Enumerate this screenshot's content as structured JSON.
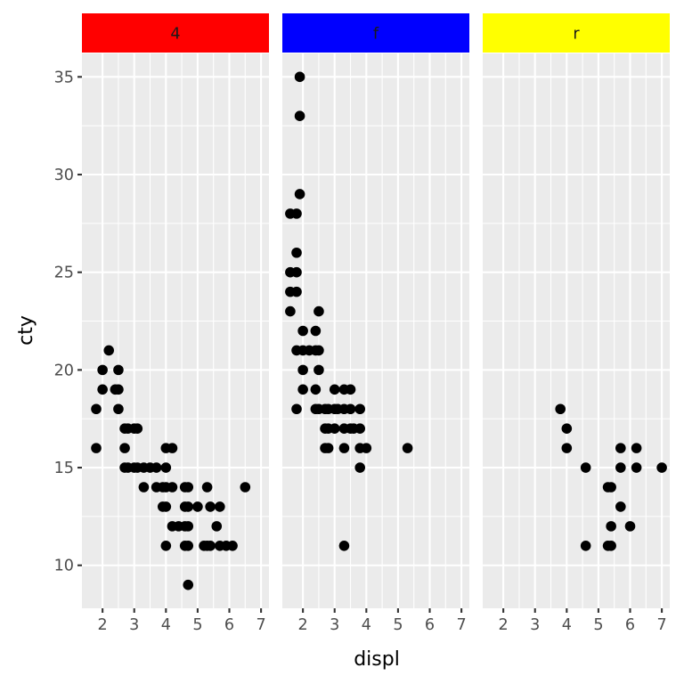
{
  "chart_data": {
    "type": "scatter",
    "xlabel": "displ",
    "ylabel": "cty",
    "xlim": [
      1.35,
      7.25
    ],
    "ylim": [
      7.8,
      36.2
    ],
    "x_ticks": [
      2,
      3,
      4,
      5,
      6,
      7
    ],
    "y_ticks": [
      10,
      15,
      20,
      25,
      30,
      35
    ],
    "grid": true,
    "facets": [
      {
        "label": "4",
        "strip_color": "#ff0000",
        "points": [
          [
            1.8,
            18
          ],
          [
            1.8,
            16
          ],
          [
            2.0,
            20
          ],
          [
            2.0,
            19
          ],
          [
            2.2,
            21
          ],
          [
            2.4,
            19
          ],
          [
            2.5,
            20
          ],
          [
            2.5,
            19
          ],
          [
            2.5,
            18
          ],
          [
            2.7,
            17
          ],
          [
            2.7,
            16
          ],
          [
            2.7,
            15
          ],
          [
            2.8,
            17
          ],
          [
            2.8,
            15
          ],
          [
            3.0,
            17
          ],
          [
            3.0,
            15
          ],
          [
            3.1,
            17
          ],
          [
            3.1,
            15
          ],
          [
            3.3,
            15
          ],
          [
            3.3,
            14
          ],
          [
            3.5,
            15
          ],
          [
            3.7,
            15
          ],
          [
            3.7,
            14
          ],
          [
            3.9,
            14
          ],
          [
            4.0,
            16
          ],
          [
            4.0,
            15
          ],
          [
            4.0,
            14
          ],
          [
            4.0,
            13
          ],
          [
            4.0,
            11
          ],
          [
            3.9,
            13
          ],
          [
            4.2,
            16
          ],
          [
            4.2,
            14
          ],
          [
            4.2,
            12
          ],
          [
            4.4,
            12
          ],
          [
            4.6,
            14
          ],
          [
            4.6,
            13
          ],
          [
            4.6,
            12
          ],
          [
            4.6,
            11
          ],
          [
            4.7,
            14
          ],
          [
            4.7,
            13
          ],
          [
            4.7,
            12
          ],
          [
            4.7,
            11
          ],
          [
            4.7,
            9
          ],
          [
            5.0,
            13
          ],
          [
            5.2,
            11
          ],
          [
            5.3,
            14
          ],
          [
            5.3,
            11
          ],
          [
            5.4,
            13
          ],
          [
            5.4,
            11
          ],
          [
            5.6,
            12
          ],
          [
            5.7,
            13
          ],
          [
            5.7,
            11
          ],
          [
            5.9,
            11
          ],
          [
            6.1,
            11
          ],
          [
            6.5,
            14
          ]
        ]
      },
      {
        "label": "f",
        "strip_color": "#0000ff",
        "points": [
          [
            1.6,
            28
          ],
          [
            1.6,
            25
          ],
          [
            1.6,
            24
          ],
          [
            1.6,
            23
          ],
          [
            1.8,
            28
          ],
          [
            1.8,
            26
          ],
          [
            1.8,
            25
          ],
          [
            1.8,
            24
          ],
          [
            1.8,
            21
          ],
          [
            1.8,
            18
          ],
          [
            1.9,
            35
          ],
          [
            1.9,
            33
          ],
          [
            1.9,
            29
          ],
          [
            2.0,
            22
          ],
          [
            2.0,
            21
          ],
          [
            2.0,
            20
          ],
          [
            2.0,
            19
          ],
          [
            2.2,
            21
          ],
          [
            2.4,
            22
          ],
          [
            2.4,
            21
          ],
          [
            2.4,
            19
          ],
          [
            2.4,
            18
          ],
          [
            2.5,
            23
          ],
          [
            2.5,
            21
          ],
          [
            2.5,
            20
          ],
          [
            2.5,
            18
          ],
          [
            2.7,
            18
          ],
          [
            2.7,
            17
          ],
          [
            2.7,
            16
          ],
          [
            2.8,
            18
          ],
          [
            2.8,
            17
          ],
          [
            2.8,
            16
          ],
          [
            3.0,
            19
          ],
          [
            3.0,
            18
          ],
          [
            3.0,
            17
          ],
          [
            3.1,
            18
          ],
          [
            3.3,
            19
          ],
          [
            3.3,
            18
          ],
          [
            3.3,
            17
          ],
          [
            3.3,
            16
          ],
          [
            3.3,
            11
          ],
          [
            3.5,
            19
          ],
          [
            3.5,
            18
          ],
          [
            3.5,
            17
          ],
          [
            3.6,
            17
          ],
          [
            3.8,
            18
          ],
          [
            3.8,
            17
          ],
          [
            3.8,
            16
          ],
          [
            3.8,
            15
          ],
          [
            4.0,
            16
          ],
          [
            5.3,
            16
          ]
        ]
      },
      {
        "label": "r",
        "strip_color": "#ffff00",
        "points": [
          [
            3.8,
            18
          ],
          [
            4.0,
            17
          ],
          [
            4.0,
            16
          ],
          [
            4.6,
            15
          ],
          [
            4.6,
            11
          ],
          [
            5.3,
            14
          ],
          [
            5.3,
            11
          ],
          [
            5.4,
            14
          ],
          [
            5.4,
            12
          ],
          [
            5.4,
            11
          ],
          [
            5.7,
            16
          ],
          [
            5.7,
            15
          ],
          [
            5.7,
            13
          ],
          [
            6.0,
            12
          ],
          [
            6.2,
            16
          ],
          [
            6.2,
            15
          ],
          [
            7.0,
            15
          ]
        ]
      }
    ]
  }
}
